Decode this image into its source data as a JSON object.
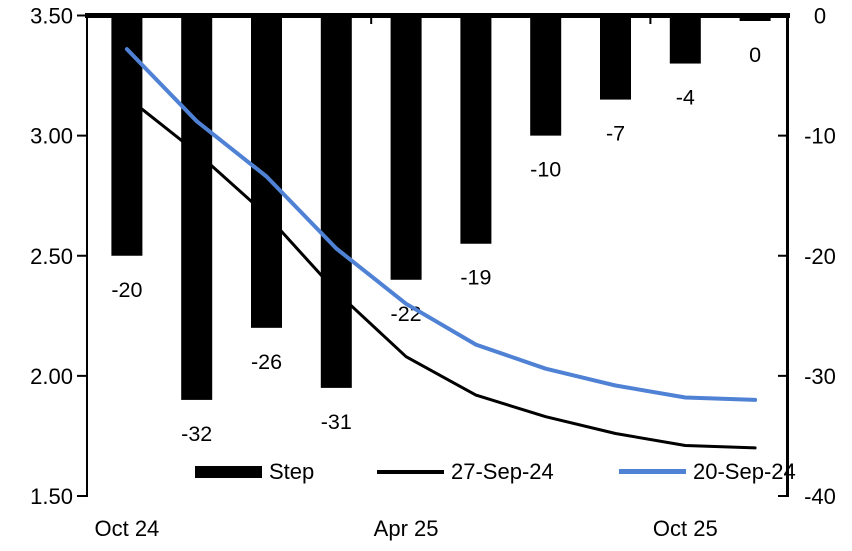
{
  "chart_data": {
    "type": "combo-bar-line",
    "n_categories": 10,
    "bars": {
      "name": "Step",
      "axis": "right",
      "color": "#000000",
      "values": [
        -20,
        -32,
        -26,
        -31,
        -22,
        -19,
        -10,
        -7,
        -4,
        0
      ],
      "labels": [
        "-20",
        "-32",
        "-26",
        "-31",
        "-22",
        "-19",
        "-10",
        "-7",
        "-4",
        "0"
      ]
    },
    "lines": [
      {
        "name": "27-Sep-24",
        "axis": "left",
        "color": "#000000",
        "stroke_width": 3,
        "values": [
          3.16,
          2.93,
          2.67,
          2.35,
          2.08,
          1.92,
          1.83,
          1.76,
          1.71,
          1.7
        ]
      },
      {
        "name": "20-Sep-24",
        "axis": "left",
        "color": "#4f81d4",
        "stroke_width": 4,
        "values": [
          3.36,
          3.06,
          2.83,
          2.53,
          2.3,
          2.13,
          2.03,
          1.96,
          1.91,
          1.9
        ]
      }
    ],
    "left_axis": {
      "min": 1.5,
      "max": 3.5,
      "tick_labels": [
        "3.50",
        "3.00",
        "2.50",
        "2.00",
        "1.50"
      ]
    },
    "right_axis": {
      "min": -40,
      "max": 0,
      "tick_labels": [
        "0",
        "-10",
        "-20",
        "-30",
        "-40"
      ]
    },
    "x_axis": {
      "labels": [
        {
          "text": "Oct 24",
          "slot": 0
        },
        {
          "text": "Apr 25",
          "slot": 4
        },
        {
          "text": "Oct 25",
          "slot": 8
        }
      ]
    },
    "legend": [
      {
        "label": "Step",
        "swatch": "bar",
        "color": "#000000"
      },
      {
        "label": "27-Sep-24",
        "swatch": "line",
        "color": "#000000"
      },
      {
        "label": "20-Sep-24",
        "swatch": "line",
        "color": "#4f81d4"
      }
    ]
  }
}
